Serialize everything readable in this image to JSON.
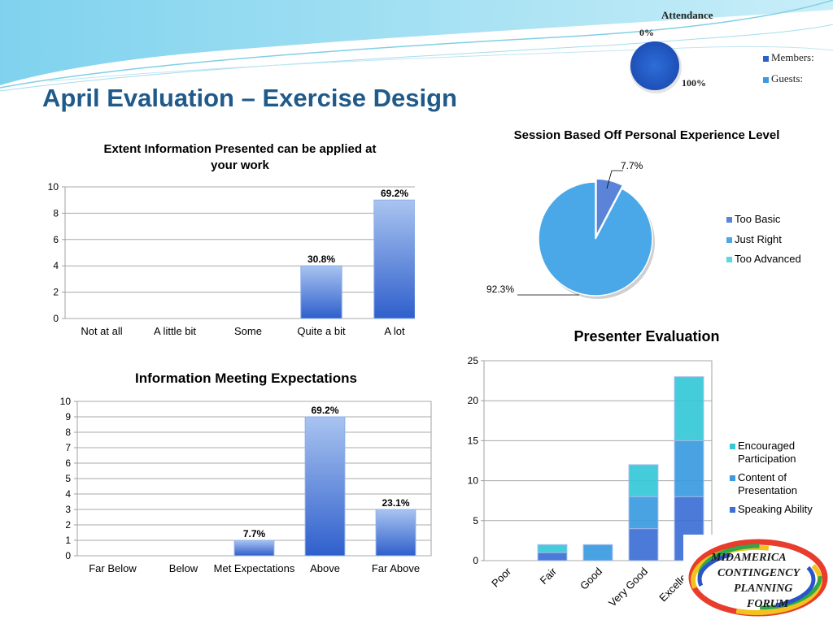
{
  "slide": {
    "title": "April Evaluation – Exercise Design",
    "accent_color": "#1f5a8a",
    "header_color": "#5fc8e8"
  },
  "attendance": {
    "title": "Attendance",
    "label_top": "0%",
    "label_bottom": "100%",
    "legend": [
      "Members:",
      "Guests:"
    ],
    "colors": [
      "#2a62c9",
      "#3a9be0"
    ]
  },
  "logo": {
    "lines": [
      "MIDAMERICA",
      "CONTINGENCY",
      "PLANNING",
      "FORUM"
    ]
  },
  "chart_data": [
    {
      "id": "extent",
      "type": "bar",
      "title": "Extent Information Presented can be applied at your work",
      "categories": [
        "Not at all",
        "A little bit",
        "Some",
        "Quite a bit",
        "A lot"
      ],
      "values": [
        0,
        0,
        0,
        4,
        9
      ],
      "data_labels": [
        "",
        "",
        "",
        "30.8%",
        "69.2%"
      ],
      "ylim": [
        0,
        10
      ],
      "yticks": [
        0,
        2,
        4,
        6,
        8,
        10
      ],
      "grid": true,
      "legend": "none"
    },
    {
      "id": "expectations",
      "type": "bar",
      "title": "Information Meeting Expectations",
      "categories": [
        "Far Below",
        "Below",
        "Met Expectations",
        "Above",
        "Far Above"
      ],
      "values": [
        0,
        0,
        1,
        9,
        3
      ],
      "data_labels": [
        "",
        "",
        "7.7%",
        "69.2%",
        "23.1%"
      ],
      "ylim": [
        0,
        10
      ],
      "yticks": [
        0,
        1,
        2,
        3,
        4,
        5,
        6,
        7,
        8,
        9,
        10
      ],
      "grid": true,
      "legend": "none"
    },
    {
      "id": "session",
      "type": "pie",
      "title": "Session Based Off Personal Experience Level",
      "labels": [
        "Too Basic",
        "Just Right",
        "Too Advanced"
      ],
      "values": [
        7.7,
        92.3,
        0
      ],
      "data_labels": [
        "7.7%",
        "92.3%",
        ""
      ],
      "colors": [
        "#5b84d8",
        "#4aa8e8",
        "#5fd6e0"
      ],
      "legend": "right"
    },
    {
      "id": "presenter",
      "type": "bar",
      "stacked": true,
      "title": "Presenter Evaluation",
      "categories": [
        "Poor",
        "Fair",
        "Good",
        "Very Good",
        "Excellent"
      ],
      "series": [
        {
          "name": "Speaking Ability",
          "values": [
            0,
            1,
            0,
            4,
            8
          ],
          "color": "#3d6fd6"
        },
        {
          "name": "Content of Presentation",
          "values": [
            0,
            0,
            2,
            4,
            7
          ],
          "color": "#3a9be0"
        },
        {
          "name": "Encouraged Participation",
          "values": [
            0,
            1,
            0,
            4,
            8
          ],
          "color": "#36c8d8"
        }
      ],
      "ylim": [
        0,
        25
      ],
      "yticks": [
        0,
        5,
        10,
        15,
        20,
        25
      ],
      "grid": true,
      "legend": "right"
    }
  ]
}
